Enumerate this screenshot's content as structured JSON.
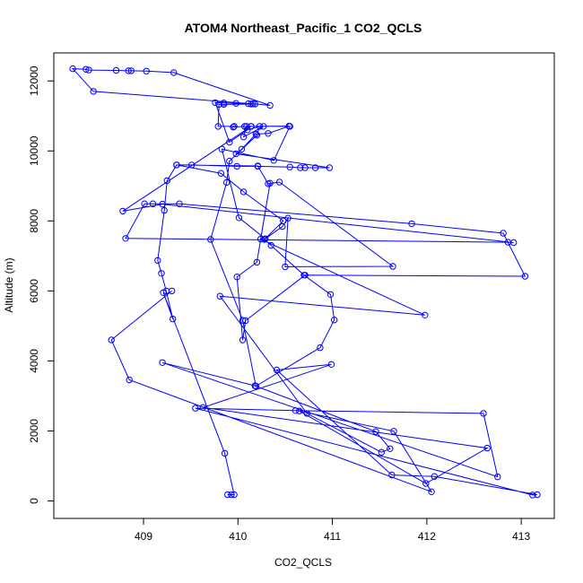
{
  "chart_data": {
    "type": "line",
    "title": "ATOM4 Northeast_Pacific_1 CO2_QCLS",
    "xlabel": "CO2_QCLS",
    "ylabel": "Altitude (m)",
    "xlim": [
      408.05,
      413.35
    ],
    "ylim": [
      -500,
      12800
    ],
    "xticks": [
      409,
      410,
      411,
      412,
      413
    ],
    "yticks": [
      0,
      2000,
      4000,
      6000,
      8000,
      10000,
      12000
    ],
    "color": "#0000ff",
    "marker": "open-circle",
    "series": [
      {
        "points": [
          [
            409.93,
            180
          ],
          [
            409.89,
            180
          ],
          [
            409.96,
            180
          ],
          [
            409.86,
            1360
          ],
          [
            409.21,
            5950
          ],
          [
            409.31,
            5200
          ],
          [
            409.24,
            6000
          ],
          [
            409.19,
            6500
          ],
          [
            409.15,
            6870
          ],
          [
            409.22,
            8300
          ],
          [
            409.25,
            9150
          ],
          [
            409.35,
            9600
          ],
          [
            409.51,
            9600
          ],
          [
            409.99,
            9560
          ],
          [
            410.21,
            9560
          ],
          [
            410.55,
            9540
          ],
          [
            410.66,
            9520
          ],
          [
            410.71,
            9520
          ],
          [
            410.82,
            9520
          ],
          [
            410.97,
            9520
          ],
          [
            409.98,
            9920
          ],
          [
            410.04,
            10050
          ],
          [
            410.19,
            10480
          ],
          [
            410.32,
            10500
          ],
          [
            410.54,
            10710
          ],
          [
            410.14,
            10700
          ],
          [
            410.07,
            10700
          ],
          [
            409.95,
            10680
          ],
          [
            409.96,
            10700
          ],
          [
            409.79,
            10700
          ],
          [
            409.8,
            11330
          ],
          [
            409.85,
            11330
          ],
          [
            410.14,
            11340
          ],
          [
            410.18,
            11340
          ],
          [
            408.47,
            11700
          ],
          [
            408.25,
            12350
          ],
          [
            408.39,
            12330
          ],
          [
            408.42,
            12310
          ],
          [
            408.71,
            12300
          ],
          [
            408.84,
            12290
          ],
          [
            408.87,
            12290
          ],
          [
            409.03,
            12280
          ],
          [
            409.32,
            12240
          ],
          [
            410.34,
            11300
          ],
          [
            410.16,
            11350
          ],
          [
            410.11,
            11350
          ],
          [
            409.98,
            11360
          ],
          [
            409.85,
            11370
          ],
          [
            409.76,
            11380
          ],
          [
            409.91,
            10250
          ],
          [
            410.1,
            10600
          ],
          [
            410.23,
            10700
          ],
          [
            410.2,
            10450
          ],
          [
            409.91,
            9710
          ],
          [
            409.88,
            9100
          ],
          [
            409.71,
            7470
          ],
          [
            410.05,
            5160
          ],
          [
            410.19,
            3280
          ],
          [
            410.87,
            4380
          ],
          [
            411.02,
            5170
          ],
          [
            410.98,
            5900
          ],
          [
            410.7,
            6450
          ],
          [
            410.35,
            7300
          ],
          [
            410.28,
            7470
          ],
          [
            410.48,
            8000
          ],
          [
            410.06,
            8830
          ],
          [
            409.82,
            9360
          ],
          [
            409.35,
            9600
          ],
          [
            410.21,
            9570
          ],
          [
            410.32,
            9060
          ],
          [
            410.44,
            9110
          ],
          [
            411.64,
            6700
          ],
          [
            410.5,
            6690
          ],
          [
            410.53,
            8080
          ],
          [
            410.47,
            7840
          ],
          [
            410.29,
            7490
          ],
          [
            410.01,
            8090
          ],
          [
            409.83,
            10050
          ],
          [
            410.38,
            9730
          ],
          [
            410.55,
            10700
          ],
          [
            410.27,
            10700
          ],
          [
            410.06,
            10400
          ],
          [
            410.09,
            10700
          ],
          [
            410.14,
            10700
          ],
          [
            408.78,
            8280
          ],
          [
            409.2,
            8480
          ],
          [
            412.92,
            7380
          ],
          [
            412.86,
            7390
          ],
          [
            408.81,
            7500
          ],
          [
            409.01,
            8490
          ],
          [
            409.1,
            8490
          ],
          [
            409.38,
            8490
          ],
          [
            411.84,
            7920
          ],
          [
            412.81,
            7650
          ],
          [
            413.04,
            6420
          ],
          [
            410.71,
            6450
          ],
          [
            410.08,
            5150
          ],
          [
            410.05,
            4600
          ],
          [
            409.99,
            6400
          ],
          [
            410.2,
            6820
          ],
          [
            410.34,
            9080
          ],
          [
            410.24,
            7480
          ],
          [
            411.98,
            5310
          ],
          [
            409.81,
            5850
          ],
          [
            410.73,
            2500
          ],
          [
            411.52,
            1390
          ],
          [
            411.61,
            1490
          ],
          [
            411.46,
            1980
          ],
          [
            410.18,
            3290
          ],
          [
            409.2,
            3950
          ],
          [
            412.75,
            690
          ],
          [
            412.6,
            2500
          ],
          [
            410.61,
            2580
          ],
          [
            409.55,
            2650
          ],
          [
            413.12,
            170
          ],
          [
            413.17,
            180
          ],
          [
            412.08,
            700
          ],
          [
            411.63,
            740
          ],
          [
            410.41,
            3740
          ],
          [
            410.99,
            3900
          ],
          [
            409.63,
            2670
          ],
          [
            412.64,
            1510
          ],
          [
            411.99,
            500
          ],
          [
            410.65,
            2570
          ],
          [
            411.65,
            1990
          ],
          [
            412.05,
            260
          ],
          [
            408.85,
            3460
          ],
          [
            408.66,
            4600
          ],
          [
            409.3,
            6000
          ]
        ]
      }
    ]
  }
}
